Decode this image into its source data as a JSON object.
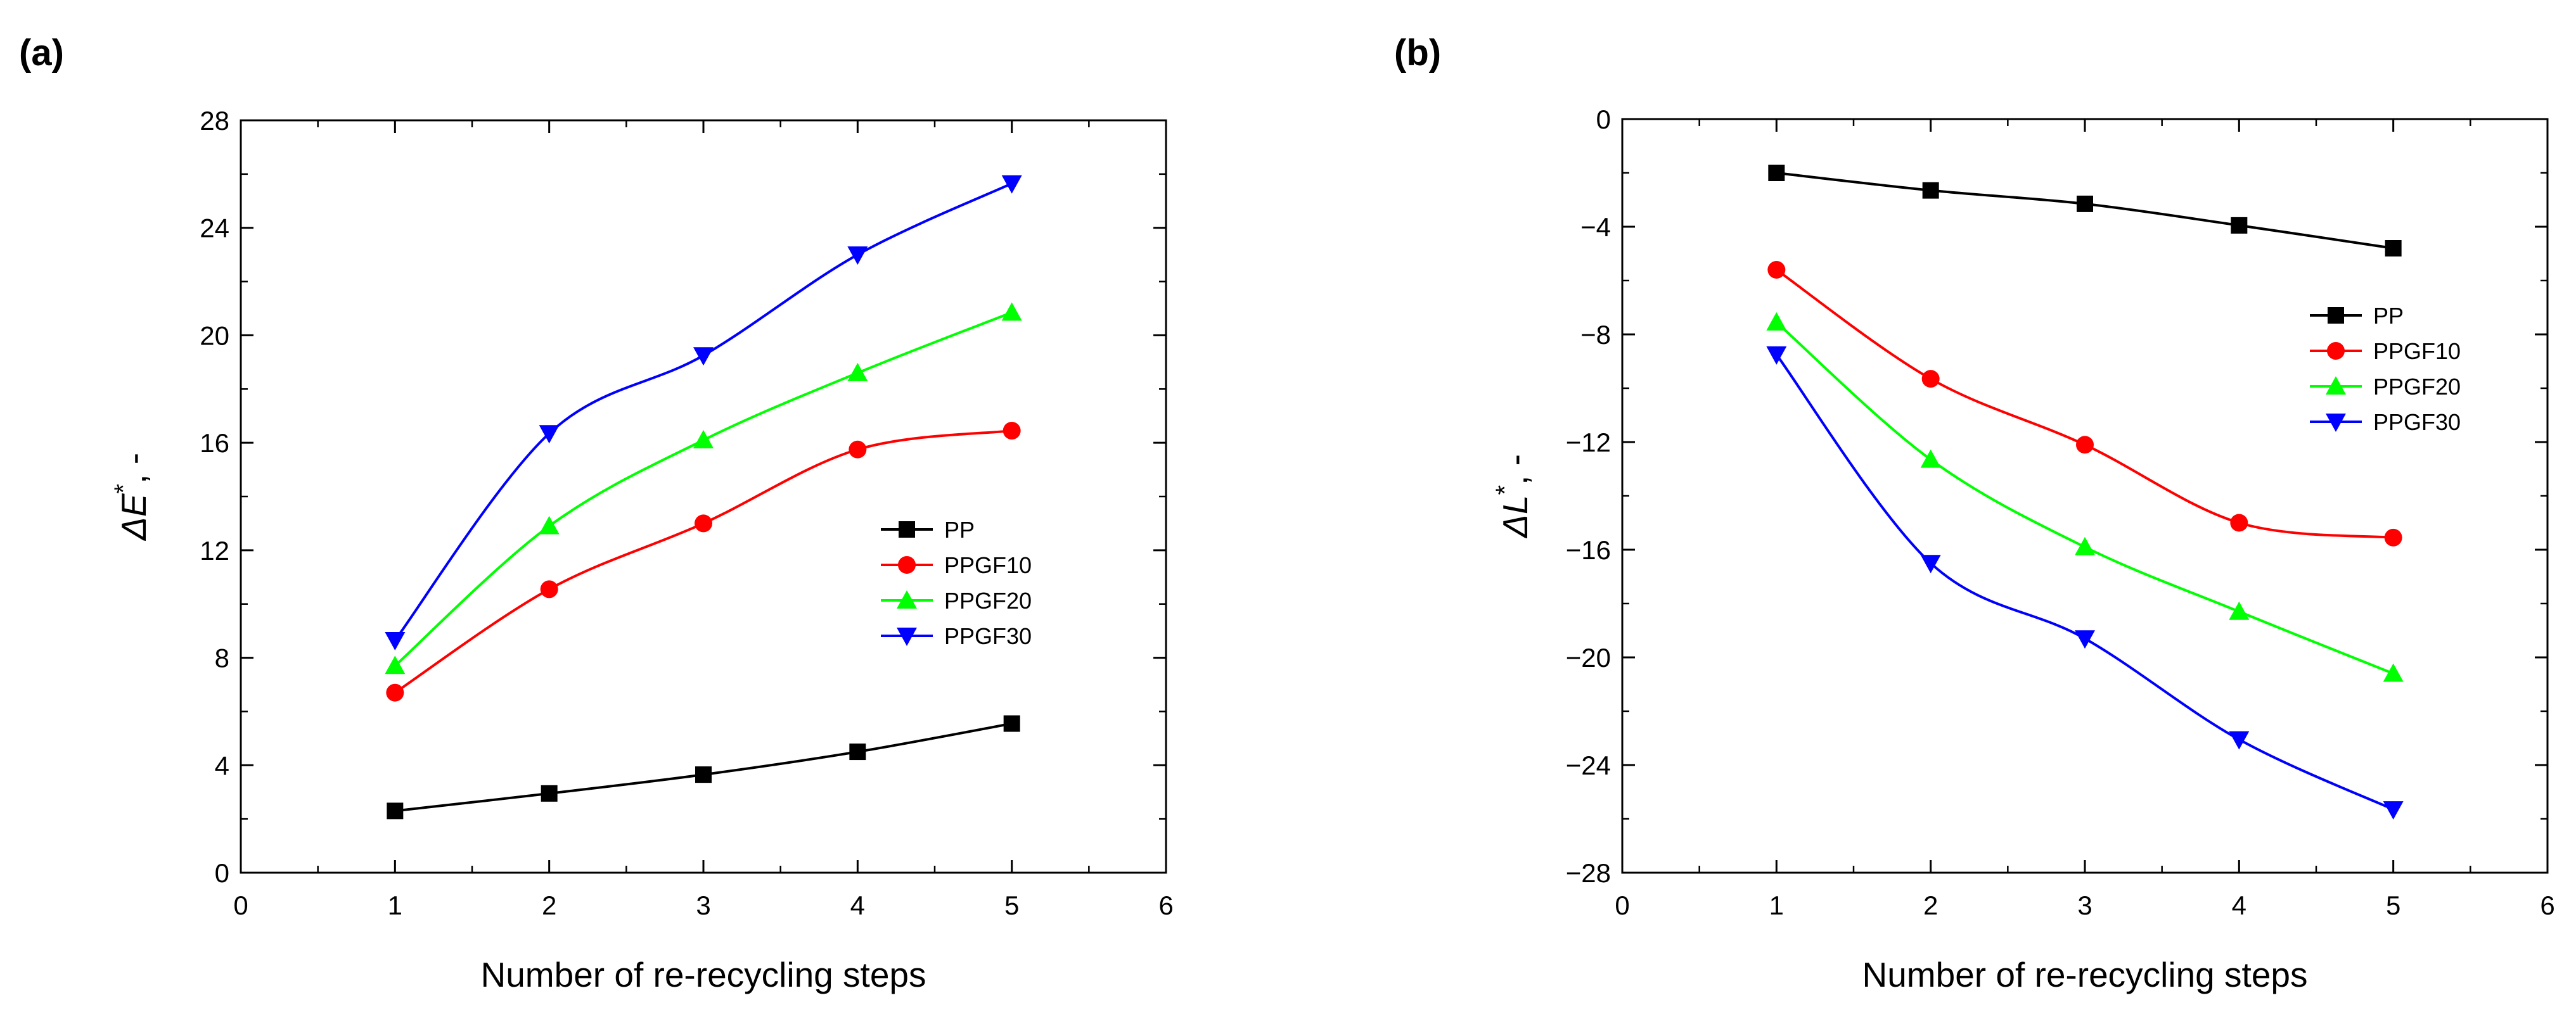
{
  "chart_data": [
    {
      "type": "line",
      "panel_label": "(a)",
      "x": [
        1,
        2,
        3,
        4,
        5
      ],
      "xlabel": "Number of re-recycling steps",
      "ylabel_symbol": "ΔE",
      "ylabel_sup": "*",
      "ylabel_suffix": ", -",
      "xlim": [
        0,
        6
      ],
      "ylim": [
        0,
        28
      ],
      "xticks": [
        0,
        1,
        2,
        3,
        4,
        5,
        6
      ],
      "yticks": [
        0,
        4,
        8,
        12,
        16,
        20,
        24,
        28
      ],
      "grid": false,
      "legend_position": "center-right",
      "series": [
        {
          "name": "PP",
          "color": "#000000",
          "marker": "square",
          "values": [
            2.3,
            2.95,
            3.65,
            4.5,
            5.55
          ]
        },
        {
          "name": "PPGF10",
          "color": "#ff0000",
          "marker": "circle",
          "values": [
            6.7,
            10.55,
            13.0,
            15.75,
            16.45
          ]
        },
        {
          "name": "PPGF20",
          "color": "#00ff00",
          "marker": "triangle-up",
          "values": [
            7.7,
            12.9,
            16.1,
            18.6,
            20.85
          ]
        },
        {
          "name": "PPGF30",
          "color": "#0000ff",
          "marker": "triangle-down",
          "values": [
            8.65,
            16.35,
            19.25,
            23.0,
            25.65
          ]
        }
      ]
    },
    {
      "type": "line",
      "panel_label": "(b)",
      "x": [
        1,
        2,
        3,
        4,
        5
      ],
      "xlabel": "Number of re-recycling steps",
      "ylabel_symbol": "ΔL",
      "ylabel_sup": "*",
      "ylabel_suffix": ", -",
      "xlim": [
        0,
        6
      ],
      "ylim": [
        -28,
        0
      ],
      "xticks": [
        0,
        1,
        2,
        3,
        4,
        5,
        6
      ],
      "yticks": [
        -28,
        -24,
        -20,
        -16,
        -12,
        -8,
        -4,
        0
      ],
      "grid": false,
      "legend_position": "top-right",
      "series": [
        {
          "name": "PP",
          "color": "#000000",
          "marker": "square",
          "values": [
            -2.0,
            -2.65,
            -3.15,
            -3.95,
            -4.8
          ]
        },
        {
          "name": "PPGF10",
          "color": "#ff0000",
          "marker": "circle",
          "values": [
            -5.6,
            -9.65,
            -12.1,
            -15.0,
            -15.55
          ]
        },
        {
          "name": "PPGF20",
          "color": "#00ff00",
          "marker": "triangle-up",
          "values": [
            -7.55,
            -12.65,
            -15.9,
            -18.3,
            -20.6
          ]
        },
        {
          "name": "PPGF30",
          "color": "#0000ff",
          "marker": "triangle-down",
          "values": [
            -8.75,
            -16.5,
            -19.3,
            -23.05,
            -25.65
          ]
        }
      ]
    }
  ]
}
